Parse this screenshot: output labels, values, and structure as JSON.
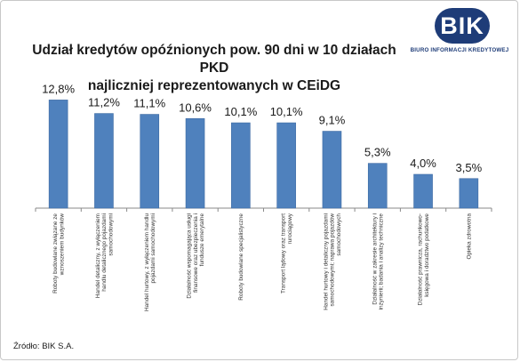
{
  "chart_data": {
    "type": "bar",
    "title": "Udział kredytów opóźnionych pow. 90 dni w 10 działach PKD najliczniej reprezentowanych w CEiDG",
    "title_lines": [
      "Udział kredytów opóźnionych pow. 90 dni w 10 działach PKD",
      "najliczniej reprezentowanych w CEiDG"
    ],
    "categories": [
      [
        "Roboty budowlane związane ze",
        "wznoszeniem budynków"
      ],
      [
        "Handel detaliczny, z wyłączeniem",
        "handlu detalicznego pojazdami",
        "samochodowymi"
      ],
      [
        "Handel hurtowy, z wyłączeniem handlu",
        "pojazdami samochodowymi"
      ],
      [
        "Działalność wspomagająca usługi",
        "finansowe oraz ubezpieczenia i",
        "fundusze emerytalne"
      ],
      [
        "Roboty budowlane specjalistyczne"
      ],
      [
        "Transport lądowy oraz transport",
        "rurociągowy"
      ],
      [
        "Handel hurtowy i detaliczny pojazdami",
        "samochodowymi; naprawa pojazdów",
        "samochodowych"
      ],
      [
        "Działalność w zakresie architektury i",
        "inżynierii; badania i analizy techniczne"
      ],
      [
        "Działalność prawnicza, rachunkowo-",
        "księgowa i doradztwo podatkowe"
      ],
      [
        "Opieka zdrowotna"
      ]
    ],
    "values": [
      12.8,
      11.2,
      11.1,
      10.6,
      10.1,
      10.1,
      9.1,
      5.3,
      4.0,
      3.5
    ],
    "value_labels": [
      "12,8%",
      "11,2%",
      "11,1%",
      "10,6%",
      "10,1%",
      "10,1%",
      "9,1%",
      "5,3%",
      "4,0%",
      "3,5%"
    ],
    "ylim": [
      0,
      14
    ],
    "colors": {
      "bar": "#4f81bd",
      "bar_edge": "#3c6aa3"
    },
    "grid": false,
    "legend": "none"
  },
  "logo": {
    "text": "BIK",
    "subtitle": "BIURO INFORMACJI KREDYTOWEJ",
    "color": "#1e3c78"
  },
  "source": "Źródło: BIK S.A."
}
